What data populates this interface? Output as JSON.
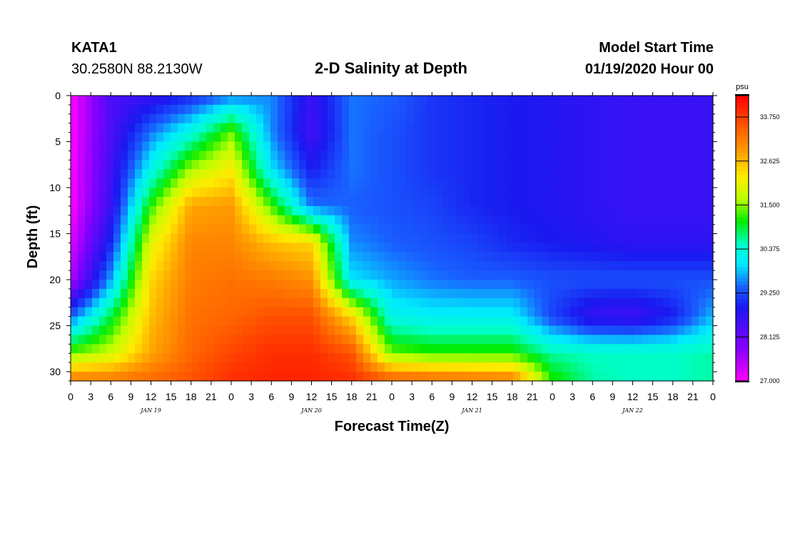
{
  "header": {
    "station": "KATA1",
    "coords": "30.2580N 88.2130W",
    "title": "2-D Salinity at Depth",
    "start_label": "Model Start Time",
    "start_value": "01/19/2020 Hour 00"
  },
  "chart_data": {
    "type": "heatmap",
    "title": "2-D Salinity at Depth",
    "xlabel": "Forecast Time(Z)",
    "ylabel": "Depth (ft)",
    "x_hours": [
      0,
      6,
      12,
      18,
      24,
      30,
      36,
      42,
      48,
      54,
      60,
      66,
      72,
      78,
      84,
      90,
      96
    ],
    "xlim": [
      0,
      96
    ],
    "x_tick_labels": [
      "0",
      "3",
      "6",
      "9",
      "12",
      "15",
      "18",
      "21",
      "0",
      "3",
      "6",
      "9",
      "12",
      "15",
      "18",
      "21",
      "0",
      "3",
      "6",
      "9",
      "12",
      "15",
      "18",
      "21",
      "0",
      "3",
      "6",
      "9",
      "12",
      "15",
      "18",
      "21",
      "0"
    ],
    "day_labels": [
      "JAN 19",
      "JAN 20",
      "JAN 21",
      "JAN 22"
    ],
    "y_ticks": [
      0,
      5,
      10,
      15,
      20,
      25,
      30
    ],
    "ylim": [
      31,
      0
    ],
    "depth_ft": [
      0,
      4,
      8,
      12,
      16,
      20,
      24,
      28,
      31
    ],
    "salinity": [
      [
        27.0,
        28.4,
        28.6,
        29.0,
        29.5,
        29.6,
        28.6,
        29.5,
        29.4,
        29.1,
        29.0,
        28.9,
        28.8,
        28.7,
        28.6,
        28.6,
        28.6
      ],
      [
        27.0,
        28.4,
        29.5,
        30.3,
        31.4,
        29.6,
        28.5,
        29.5,
        29.3,
        29.1,
        29.0,
        28.9,
        28.8,
        28.7,
        28.6,
        28.6,
        28.6
      ],
      [
        27.0,
        28.5,
        30.2,
        31.6,
        32.2,
        30.0,
        28.9,
        29.5,
        29.3,
        29.1,
        29.0,
        28.9,
        28.8,
        28.7,
        28.6,
        28.6,
        28.6
      ],
      [
        27.0,
        28.6,
        31.2,
        32.8,
        32.9,
        31.3,
        29.5,
        29.4,
        29.3,
        29.2,
        29.0,
        28.9,
        28.8,
        28.7,
        28.6,
        28.6,
        28.6
      ],
      [
        27.2,
        29.0,
        32.0,
        33.1,
        33.1,
        32.6,
        32.4,
        29.6,
        29.4,
        29.3,
        29.2,
        29.0,
        28.9,
        28.8,
        28.7,
        28.7,
        28.7
      ],
      [
        27.5,
        29.7,
        32.4,
        33.2,
        33.3,
        33.2,
        33.0,
        30.0,
        29.7,
        29.5,
        29.4,
        29.4,
        29.3,
        29.3,
        29.3,
        29.3,
        29.3
      ],
      [
        29.4,
        30.9,
        32.6,
        33.3,
        33.4,
        33.6,
        33.6,
        32.4,
        30.2,
        30.1,
        30.1,
        30.1,
        29.2,
        28.6,
        28.5,
        28.9,
        29.8
      ],
      [
        31.4,
        31.8,
        32.8,
        33.4,
        33.7,
        33.9,
        33.9,
        33.6,
        31.4,
        31.2,
        31.2,
        31.2,
        30.6,
        30.5,
        30.5,
        30.5,
        30.6
      ],
      [
        33.3,
        33.3,
        33.4,
        33.6,
        33.9,
        34.0,
        34.0,
        33.9,
        33.6,
        33.5,
        33.4,
        33.3,
        31.2,
        30.6,
        30.5,
        30.5,
        30.6
      ]
    ],
    "colorbar": {
      "unit": "psu",
      "min": 27.0,
      "max": 34.3,
      "tick_labels": [
        "33.750",
        "32.625",
        "31.500",
        "30.375",
        "29.250",
        "28.125",
        "27.000"
      ],
      "tick_values": [
        33.75,
        32.625,
        31.5,
        30.375,
        29.25,
        28.125,
        27.0
      ]
    }
  }
}
